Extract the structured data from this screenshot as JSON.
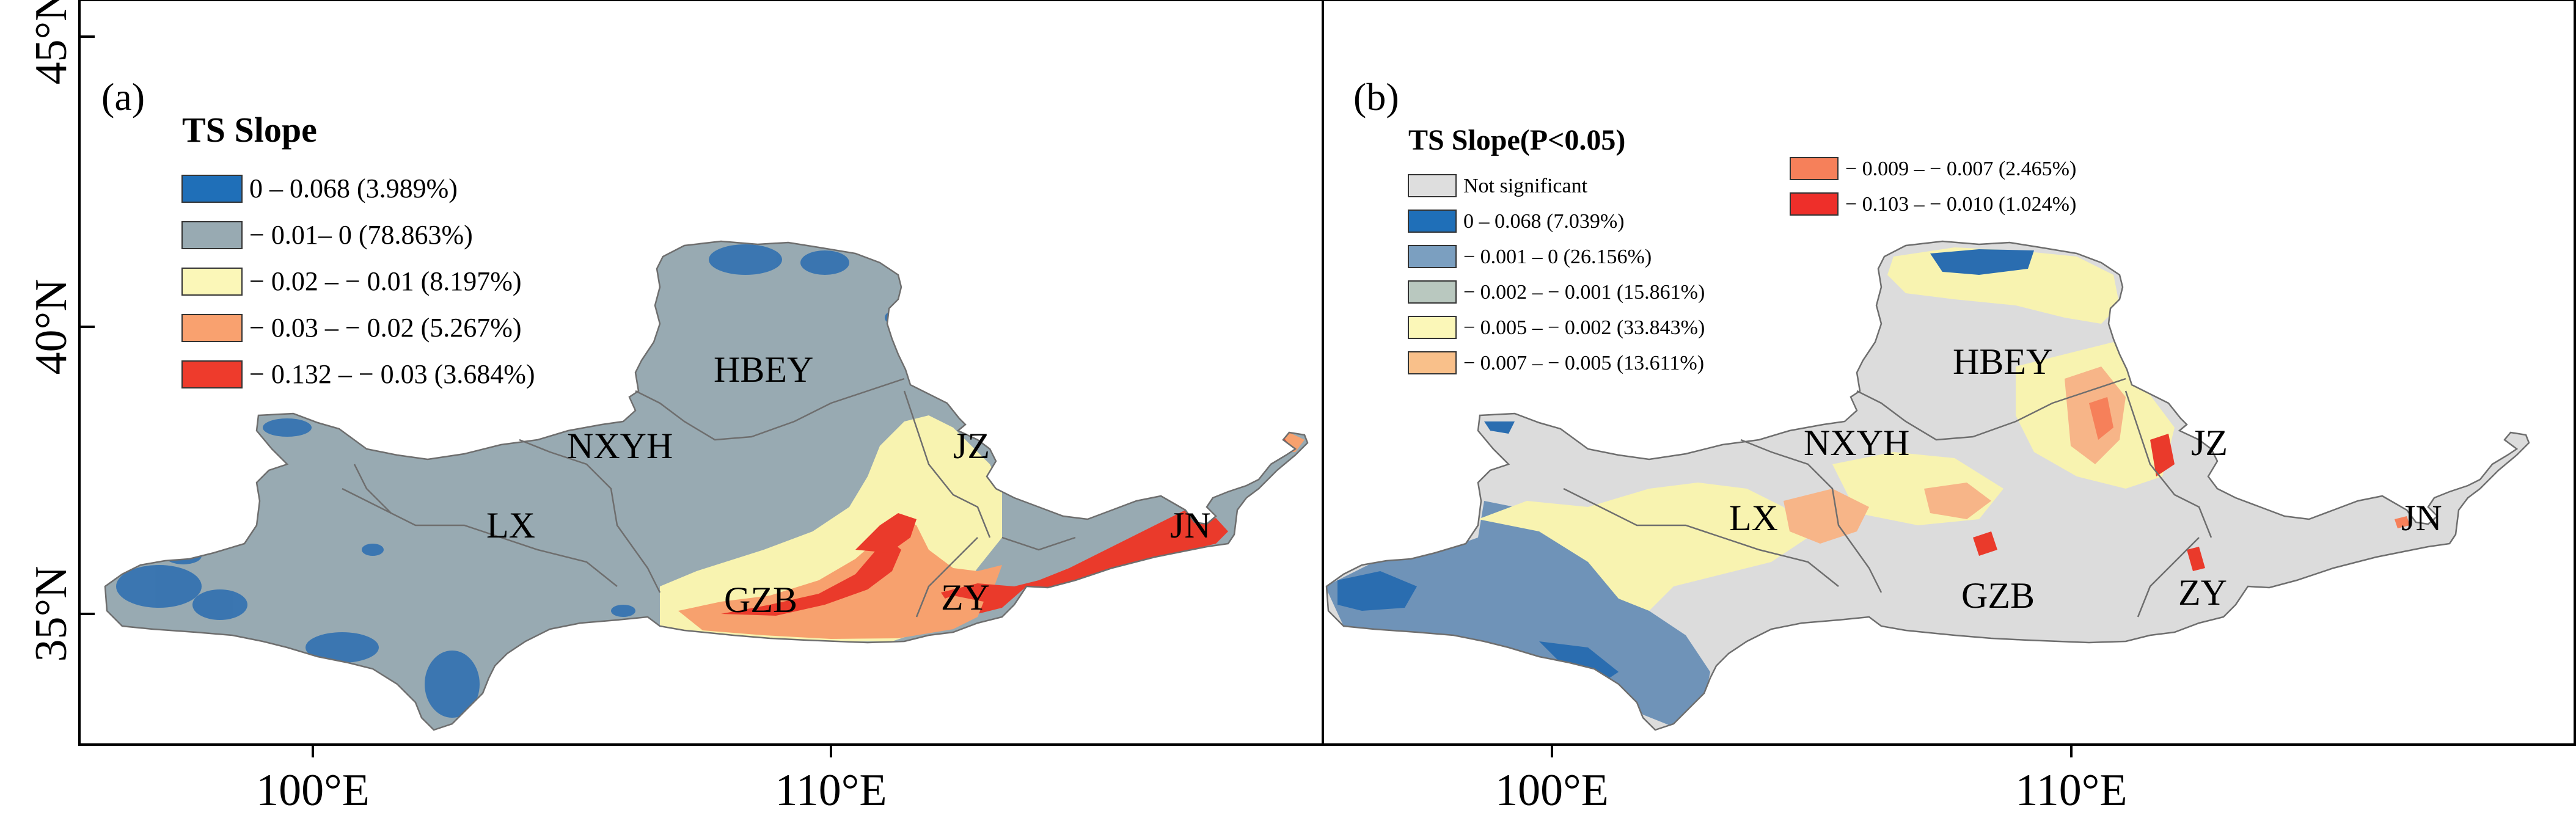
{
  "axes": {
    "y_ticks": [
      "45°N",
      "40°N",
      "35°N"
    ],
    "x_ticks": [
      "100°E",
      "110°E",
      "100°E",
      "110°E"
    ]
  },
  "panel_a": {
    "tag": "(a)",
    "legend_title": "TS Slope",
    "legend": [
      {
        "label": "0 – 0.068 (3.989%)",
        "color": "#1f6fb8"
      },
      {
        "label": "− 0.01– 0 (78.863%)",
        "color": "#98aab2"
      },
      {
        "label": "− 0.02 – − 0.01 (8.197%)",
        "color": "#fbf7b8"
      },
      {
        "label": "− 0.03 – − 0.02 (5.267%)",
        "color": "#f9a16f"
      },
      {
        "label": "− 0.132 – − 0.03 (3.684%)",
        "color": "#ee3b2c"
      }
    ],
    "regions": [
      "HBEY",
      "NXYH",
      "LX",
      "JZ",
      "GZB",
      "ZY",
      "JN"
    ]
  },
  "panel_b": {
    "tag": "(b)",
    "legend_title": "TS Slope(P<0.05)",
    "legend_col1": [
      {
        "label": "Not significant",
        "color": "#dedede"
      },
      {
        "label": "0 – 0.068 (7.039%)",
        "color": "#1f6fb8"
      },
      {
        "label": "− 0.001 – 0 (26.156%)",
        "color": "#7b9fc0"
      },
      {
        "label": "− 0.002 – − 0.001 (15.861%)",
        "color": "#b9c8bf"
      },
      {
        "label": "− 0.005 – − 0.002 (33.843%)",
        "color": "#fbf7b8"
      },
      {
        "label": "− 0.007 – − 0.005 (13.611%)",
        "color": "#f9c08a"
      }
    ],
    "legend_col2": [
      {
        "label": "− 0.009 – − 0.007 (2.465%)",
        "color": "#f6805a"
      },
      {
        "label": "− 0.103 – − 0.010 (1.024%)",
        "color": "#ee2f2a"
      }
    ],
    "regions": [
      "HBEY",
      "NXYH",
      "LX",
      "JZ",
      "GZB",
      "ZY",
      "JN"
    ]
  },
  "colors": {
    "basin_grey": "#98aab2",
    "blue": "#2a6db0",
    "yellow": "#f8f3b0",
    "orange": "#f7a16e",
    "red": "#ea3a2b",
    "not_sig": "#dcdcdc",
    "steel": "#6f93b8",
    "boundary": "#6e6e6e"
  }
}
